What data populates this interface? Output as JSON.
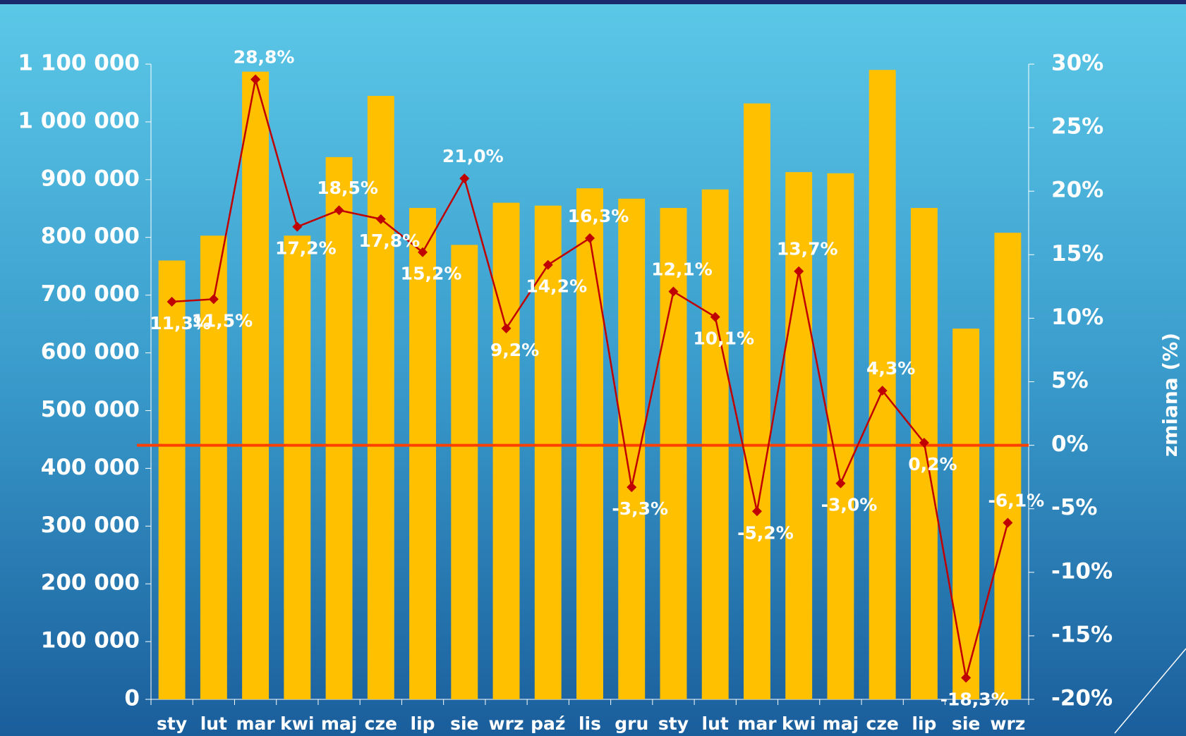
{
  "chart_data": {
    "type": "bar_line",
    "categories": [
      "sty",
      "lut",
      "mar",
      "kwi",
      "maj",
      "cze",
      "lip",
      "sie",
      "wrz",
      "paź",
      "lis",
      "gru",
      "sty",
      "lut",
      "mar",
      "kwi",
      "maj",
      "cze",
      "lip",
      "sie",
      "wrz"
    ],
    "series": [
      {
        "type": "bar",
        "color": "#ffc000",
        "values": [
          760000,
          803000,
          1087000,
          803000,
          939000,
          1045000,
          851000,
          787000,
          860000,
          855000,
          885000,
          867000,
          851000,
          883000,
          1032000,
          913000,
          911000,
          1090000,
          851000,
          642000,
          808000
        ]
      },
      {
        "type": "line",
        "axis": "y2",
        "color": "#c00000",
        "values": [
          11.3,
          11.5,
          28.8,
          17.2,
          18.5,
          17.8,
          15.2,
          21.0,
          9.2,
          14.2,
          16.3,
          -3.3,
          12.1,
          10.1,
          -5.2,
          13.7,
          -3.0,
          4.3,
          0.2,
          -18.3,
          -6.1
        ],
        "value_labels": [
          "11,3%",
          "11,5%",
          "28,8%",
          "17,2%",
          "18,5%",
          "17,8%",
          "15,2%",
          "21,0%",
          "9,2%",
          "14,2%",
          "16,3%",
          "-3,3%",
          "12,1%",
          "10,1%",
          "-5,2%",
          "13,7%",
          "-3,0%",
          "4,3%",
          "0,2%",
          "-18,3%",
          "-6,1%"
        ]
      }
    ],
    "ylim": [
      0,
      1100000
    ],
    "yticks": [
      0,
      {
        "value": 100000,
        "label": "100 000"
      },
      {
        "value": 200000,
        "label": "200 000"
      },
      {
        "value": 300000,
        "label": "300 000"
      },
      {
        "value": 400000,
        "label": "400 000"
      },
      {
        "value": 500000,
        "label": "500 000"
      },
      {
        "value": 600000,
        "label": "600 000"
      },
      {
        "value": 700000,
        "label": "700 000"
      },
      {
        "value": 800000,
        "label": "800 000"
      },
      {
        "value": 900000,
        "label": "900 000"
      },
      {
        "value": 1000000,
        "label": "1 000 000"
      },
      {
        "value": 1100000,
        "label": "1 100 000"
      }
    ],
    "y2lim": [
      -20,
      30
    ],
    "y2ticks": [
      {
        "value": -20,
        "label": "-20%"
      },
      {
        "value": -15,
        "label": "-15%"
      },
      {
        "value": -10,
        "label": "-10%"
      },
      {
        "value": -5,
        "label": "-5%"
      },
      {
        "value": 0,
        "label": "0%"
      },
      {
        "value": 5,
        "label": "5%"
      },
      {
        "value": 10,
        "label": "10%"
      },
      {
        "value": 15,
        "label": "15%"
      },
      {
        "value": 20,
        "label": "20%"
      },
      {
        "value": 25,
        "label": "25%"
      },
      {
        "value": 30,
        "label": "30%"
      }
    ],
    "y2label": "zmiana (%)",
    "zero_line_color": "#ff4000"
  }
}
